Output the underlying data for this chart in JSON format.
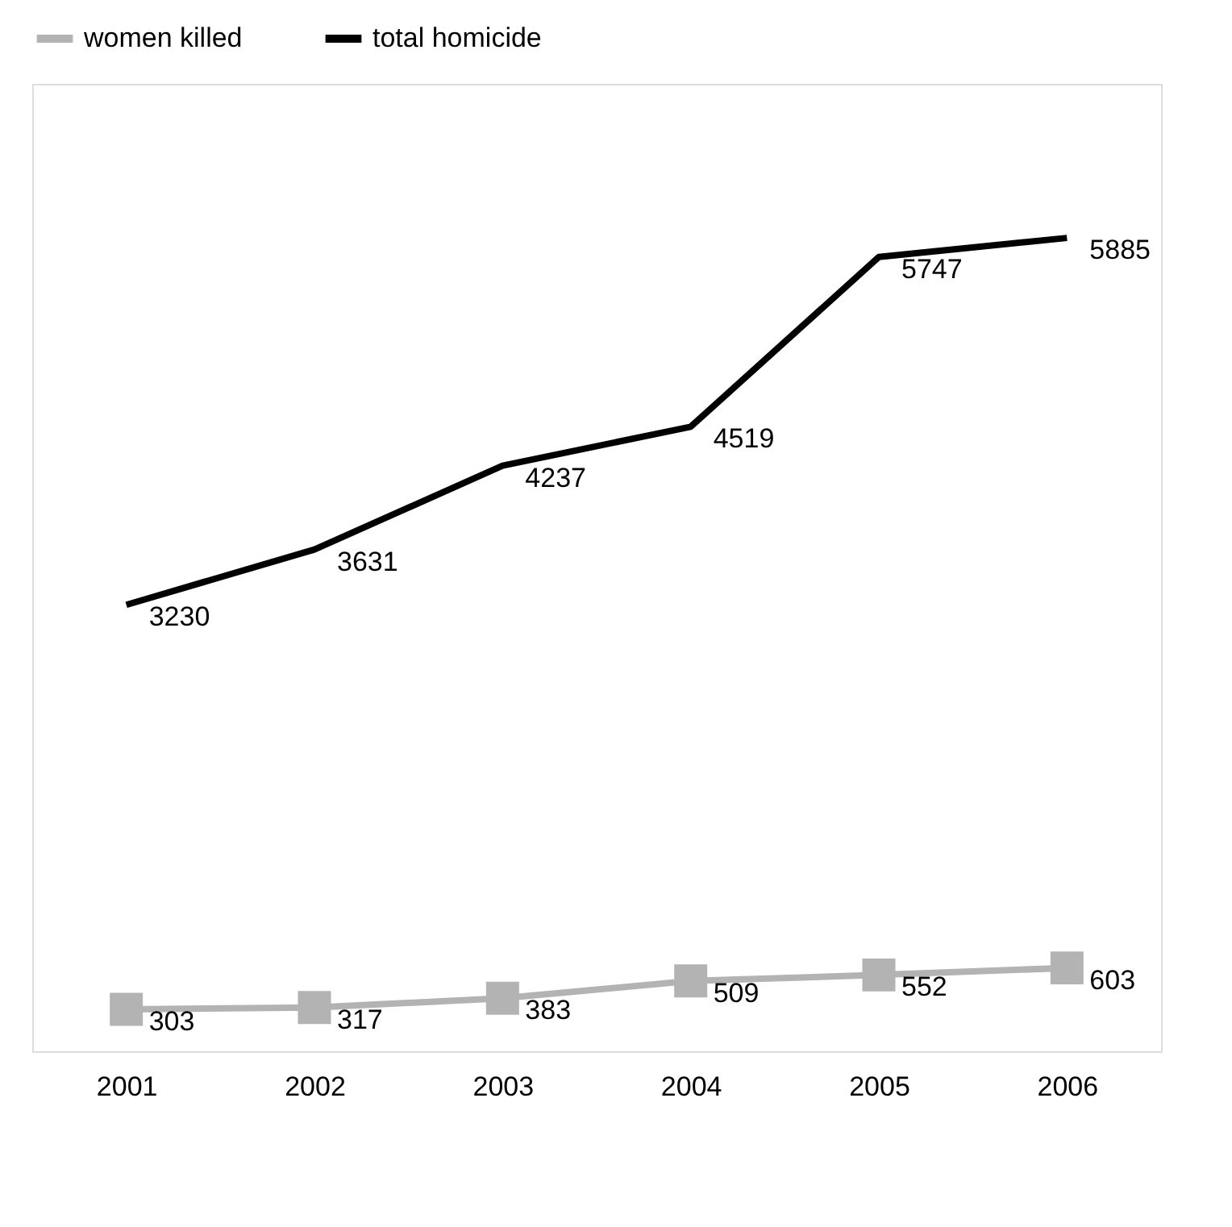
{
  "chart_data": {
    "type": "line",
    "categories": [
      "2001",
      "2002",
      "2003",
      "2004",
      "2005",
      "2006"
    ],
    "series": [
      {
        "name": "women killed",
        "color": "#b3b3b3",
        "marker": "square",
        "values": [
          303,
          317,
          383,
          509,
          552,
          603
        ]
      },
      {
        "name": "total homicide",
        "color": "#000000",
        "marker": "none",
        "values": [
          3230,
          3631,
          4237,
          4519,
          5747,
          5885
        ]
      }
    ],
    "ylim": [
      0,
      7000
    ],
    "data_labels": true,
    "legend": "top",
    "grid": false,
    "tick_labels": "x"
  }
}
